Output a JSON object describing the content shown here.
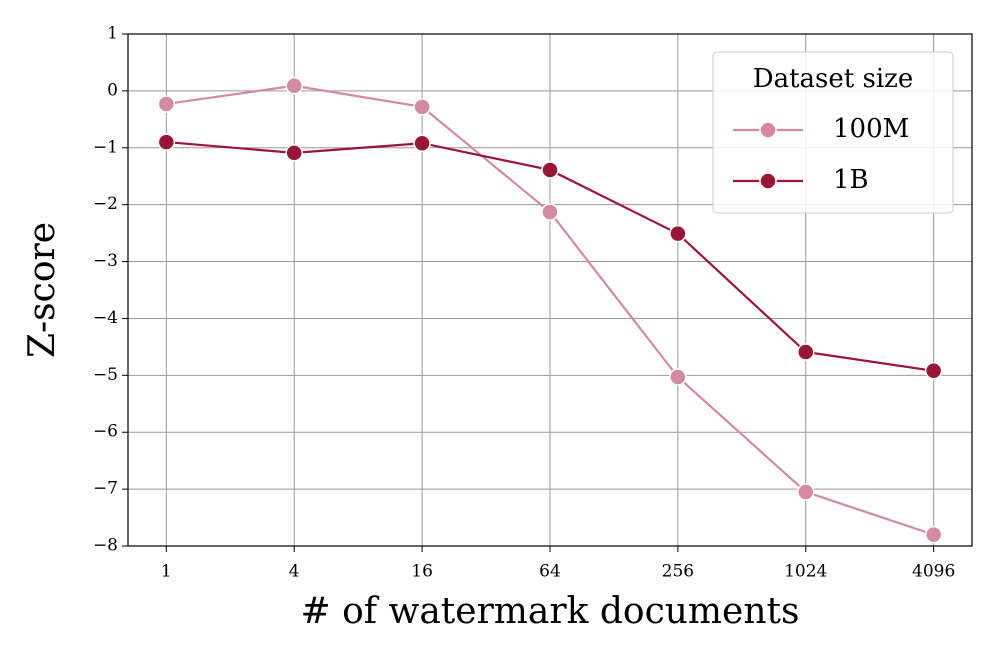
{
  "chart_data": {
    "type": "line",
    "xlabel": "# of watermark documents",
    "ylabel": "Z-score",
    "x": [
      1,
      4,
      16,
      64,
      256,
      1024,
      4096
    ],
    "xscale": "log",
    "xlim": [
      0.66,
      6208
    ],
    "xticks": [
      1,
      4,
      16,
      64,
      256,
      1024,
      4096
    ],
    "ylim": [
      -8,
      1
    ],
    "yticks": [
      {
        "value": -8,
        "label": "−8"
      },
      {
        "value": -7,
        "label": "−7"
      },
      {
        "value": -6,
        "label": "−6"
      },
      {
        "value": -5,
        "label": "−5"
      },
      {
        "value": -4,
        "label": "−4"
      },
      {
        "value": -3,
        "label": "−3"
      },
      {
        "value": -2,
        "label": "−2"
      },
      {
        "value": -1,
        "label": "−1"
      },
      0,
      1
    ],
    "grid": true,
    "legend_title": "Dataset size",
    "legend_position": "upper right",
    "series": [
      {
        "name": "100M",
        "color": "#d48aa0",
        "values": [
          -0.23,
          0.09,
          -0.28,
          -2.13,
          -5.03,
          -7.05,
          -7.8
        ]
      },
      {
        "name": "1B",
        "color": "#9b1538",
        "values": [
          -0.9,
          -1.09,
          -0.92,
          -1.39,
          -2.51,
          -4.59,
          -4.92
        ]
      }
    ]
  }
}
